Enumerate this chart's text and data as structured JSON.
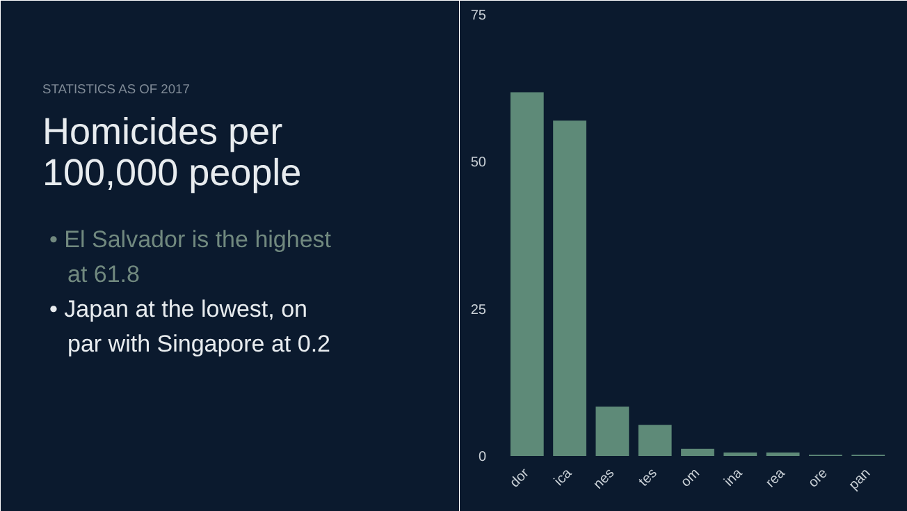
{
  "chart_data": {
    "type": "bar",
    "subtitle": "STATISTICS AS OF 2017",
    "title": "Homicides per 100,000 people",
    "annotations": [
      "• El Salvador is the highest at 61.8",
      "• Japan at the lowest, on par with Singapore at 0.2"
    ],
    "categories": [
      "dor",
      "ica",
      "nes",
      "tes",
      "om",
      "ina",
      "rea",
      "ore",
      "pan"
    ],
    "values": [
      61.8,
      57,
      8.4,
      5.3,
      1.2,
      0.6,
      0.6,
      0.2,
      0.2
    ],
    "color": "#5e8a78",
    "ylim": [
      0,
      75
    ],
    "yticks": [
      0,
      25,
      50,
      75
    ],
    "grid": false
  }
}
